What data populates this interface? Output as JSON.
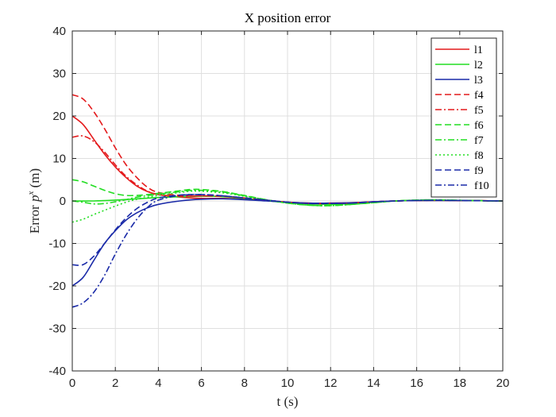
{
  "chart_data": {
    "type": "line",
    "title": "X position error",
    "xlabel": "t (s)",
    "ylabel_prefix": "Error",
    "ylabel_var": "p",
    "ylabel_sup": "x",
    "ylabel_unit": "(m)",
    "xlim": [
      0,
      20
    ],
    "ylim": [
      -40,
      40
    ],
    "xticks": [
      "0",
      "2",
      "4",
      "6",
      "8",
      "10",
      "12",
      "14",
      "16",
      "18",
      "20"
    ],
    "yticks": [
      "-40",
      "-30",
      "-20",
      "-10",
      "0",
      "10",
      "20",
      "30",
      "40"
    ],
    "grid": true,
    "legend_position": "top-right",
    "series": [
      {
        "name": "l1",
        "color": "#e41a1c",
        "style": "solid",
        "points": [
          [
            0,
            20
          ],
          [
            0.5,
            18
          ],
          [
            1,
            14.5
          ],
          [
            1.5,
            11
          ],
          [
            2,
            8
          ],
          [
            2.5,
            5.5
          ],
          [
            3,
            3.5
          ],
          [
            3.5,
            2.2
          ],
          [
            4,
            1.5
          ],
          [
            5,
            0.9
          ],
          [
            6,
            0.6
          ],
          [
            7,
            0.6
          ],
          [
            8,
            0.4
          ],
          [
            9,
            0.1
          ],
          [
            10,
            -0.3
          ],
          [
            11,
            -0.5
          ],
          [
            12,
            -0.5
          ],
          [
            13,
            -0.4
          ],
          [
            14,
            -0.2
          ],
          [
            15,
            0
          ],
          [
            16,
            0.1
          ],
          [
            17,
            0.1
          ],
          [
            18,
            0.1
          ],
          [
            19,
            0.05
          ],
          [
            20,
            0
          ]
        ]
      },
      {
        "name": "l2",
        "color": "#22dd22",
        "style": "solid",
        "points": [
          [
            0,
            0
          ],
          [
            1,
            0
          ],
          [
            2,
            0.2
          ],
          [
            3,
            0.5
          ],
          [
            4,
            0.8
          ],
          [
            5,
            1
          ],
          [
            6,
            1.1
          ],
          [
            7,
            1
          ],
          [
            8,
            0.6
          ],
          [
            9,
            0.1
          ],
          [
            10,
            -0.4
          ],
          [
            11,
            -0.7
          ],
          [
            12,
            -0.8
          ],
          [
            13,
            -0.6
          ],
          [
            14,
            -0.3
          ],
          [
            15,
            0
          ],
          [
            16,
            0.1
          ],
          [
            17,
            0.15
          ],
          [
            18,
            0.1
          ],
          [
            19,
            0.05
          ],
          [
            20,
            0
          ]
        ]
      },
      {
        "name": "l3",
        "color": "#1a2aa8",
        "style": "solid",
        "points": [
          [
            0,
            -20
          ],
          [
            0.5,
            -18
          ],
          [
            1,
            -14
          ],
          [
            1.5,
            -10
          ],
          [
            2,
            -7
          ],
          [
            2.5,
            -4.5
          ],
          [
            3,
            -2.8
          ],
          [
            3.5,
            -1.6
          ],
          [
            4,
            -0.8
          ],
          [
            5,
            0
          ],
          [
            6,
            0.4
          ],
          [
            7,
            0.5
          ],
          [
            8,
            0.3
          ],
          [
            9,
            0
          ],
          [
            10,
            -0.3
          ],
          [
            11,
            -0.5
          ],
          [
            12,
            -0.5
          ],
          [
            13,
            -0.4
          ],
          [
            14,
            -0.2
          ],
          [
            15,
            0
          ],
          [
            16,
            0.1
          ],
          [
            17,
            0.1
          ],
          [
            18,
            0.1
          ],
          [
            19,
            0.05
          ],
          [
            20,
            0
          ]
        ]
      },
      {
        "name": "f4",
        "color": "#e41a1c",
        "style": "dash",
        "points": [
          [
            0,
            25
          ],
          [
            0.5,
            24
          ],
          [
            1,
            21
          ],
          [
            1.5,
            17
          ],
          [
            2,
            12.5
          ],
          [
            2.5,
            8.5
          ],
          [
            3,
            5.5
          ],
          [
            3.5,
            3.2
          ],
          [
            4,
            2
          ],
          [
            5,
            1.3
          ],
          [
            6,
            1.2
          ],
          [
            7,
            1.1
          ],
          [
            8,
            0.7
          ],
          [
            9,
            0.2
          ],
          [
            10,
            -0.3
          ],
          [
            11,
            -0.6
          ],
          [
            12,
            -0.6
          ],
          [
            13,
            -0.5
          ],
          [
            14,
            -0.2
          ],
          [
            15,
            0
          ],
          [
            16,
            0.1
          ],
          [
            17,
            0.15
          ],
          [
            18,
            0.1
          ],
          [
            19,
            0.05
          ],
          [
            20,
            0
          ]
        ]
      },
      {
        "name": "f5",
        "color": "#e41a1c",
        "style": "dashdot",
        "points": [
          [
            0,
            15
          ],
          [
            0.5,
            15.3
          ],
          [
            1,
            14
          ],
          [
            1.5,
            11.5
          ],
          [
            2,
            8.5
          ],
          [
            2.5,
            5.8
          ],
          [
            3,
            3.8
          ],
          [
            3.5,
            2.3
          ],
          [
            4,
            1.5
          ],
          [
            5,
            1.1
          ],
          [
            6,
            1.2
          ],
          [
            7,
            1.1
          ],
          [
            8,
            0.7
          ],
          [
            9,
            0.2
          ],
          [
            10,
            -0.3
          ],
          [
            11,
            -0.6
          ],
          [
            12,
            -0.6
          ],
          [
            13,
            -0.5
          ],
          [
            14,
            -0.2
          ],
          [
            15,
            0
          ],
          [
            16,
            0.1
          ],
          [
            17,
            0.15
          ],
          [
            18,
            0.1
          ],
          [
            19,
            0.05
          ],
          [
            20,
            0
          ]
        ]
      },
      {
        "name": "f6",
        "color": "#22dd22",
        "style": "dash",
        "points": [
          [
            0,
            5
          ],
          [
            0.5,
            4.5
          ],
          [
            1,
            3.5
          ],
          [
            1.5,
            2.5
          ],
          [
            2,
            1.7
          ],
          [
            2.5,
            1.3
          ],
          [
            3,
            1.3
          ],
          [
            3.5,
            1.5
          ],
          [
            4,
            1.8
          ],
          [
            5,
            2.4
          ],
          [
            5.5,
            2.7
          ],
          [
            6,
            2.7
          ],
          [
            7,
            2.2
          ],
          [
            8,
            1.3
          ],
          [
            9,
            0.3
          ],
          [
            10,
            -0.5
          ],
          [
            11,
            -1
          ],
          [
            12,
            -1.1
          ],
          [
            13,
            -0.8
          ],
          [
            14,
            -0.4
          ],
          [
            15,
            0
          ],
          [
            16,
            0.2
          ],
          [
            17,
            0.25
          ],
          [
            18,
            0.15
          ],
          [
            19,
            0.05
          ],
          [
            20,
            0
          ]
        ]
      },
      {
        "name": "f7",
        "color": "#22dd22",
        "style": "dashdot",
        "points": [
          [
            0,
            0
          ],
          [
            0.5,
            -0.3
          ],
          [
            1,
            -0.7
          ],
          [
            1.5,
            -0.6
          ],
          [
            2,
            -0.2
          ],
          [
            2.5,
            0.3
          ],
          [
            3,
            0.9
          ],
          [
            4,
            1.6
          ],
          [
            5,
            2.2
          ],
          [
            5.5,
            2.5
          ],
          [
            6,
            2.5
          ],
          [
            7,
            2.1
          ],
          [
            8,
            1.2
          ],
          [
            9,
            0.3
          ],
          [
            10,
            -0.5
          ],
          [
            11,
            -1
          ],
          [
            12,
            -1.1
          ],
          [
            13,
            -0.8
          ],
          [
            14,
            -0.4
          ],
          [
            15,
            0
          ],
          [
            16,
            0.2
          ],
          [
            17,
            0.25
          ],
          [
            18,
            0.15
          ],
          [
            19,
            0.05
          ],
          [
            20,
            0
          ]
        ]
      },
      {
        "name": "f8",
        "color": "#22dd22",
        "style": "dot",
        "points": [
          [
            0,
            -5
          ],
          [
            0.5,
            -4.3
          ],
          [
            1,
            -3.2
          ],
          [
            1.5,
            -2.2
          ],
          [
            2,
            -1.2
          ],
          [
            2.5,
            -0.3
          ],
          [
            3,
            0.4
          ],
          [
            4,
            1.3
          ],
          [
            5,
            2
          ],
          [
            5.5,
            2.3
          ],
          [
            6,
            2.3
          ],
          [
            7,
            1.9
          ],
          [
            8,
            1.1
          ],
          [
            9,
            0.2
          ],
          [
            10,
            -0.5
          ],
          [
            11,
            -1
          ],
          [
            12,
            -1.1
          ],
          [
            13,
            -0.8
          ],
          [
            14,
            -0.4
          ],
          [
            15,
            0
          ],
          [
            16,
            0.2
          ],
          [
            17,
            0.25
          ],
          [
            18,
            0.15
          ],
          [
            19,
            0.05
          ],
          [
            20,
            0
          ]
        ]
      },
      {
        "name": "f9",
        "color": "#1a2aa8",
        "style": "dash",
        "points": [
          [
            0,
            -15
          ],
          [
            0.5,
            -15
          ],
          [
            1,
            -13
          ],
          [
            1.5,
            -10
          ],
          [
            2,
            -6.8
          ],
          [
            2.5,
            -4
          ],
          [
            3,
            -1.8
          ],
          [
            3.5,
            -0.3
          ],
          [
            4,
            0.7
          ],
          [
            5,
            1.4
          ],
          [
            6,
            1.5
          ],
          [
            7,
            1.2
          ],
          [
            8,
            0.7
          ],
          [
            9,
            0.2
          ],
          [
            10,
            -0.3
          ],
          [
            11,
            -0.6
          ],
          [
            12,
            -0.6
          ],
          [
            13,
            -0.5
          ],
          [
            14,
            -0.2
          ],
          [
            15,
            0
          ],
          [
            16,
            0.1
          ],
          [
            17,
            0.15
          ],
          [
            18,
            0.1
          ],
          [
            19,
            0.05
          ],
          [
            20,
            0
          ]
        ]
      },
      {
        "name": "f10",
        "color": "#1a2aa8",
        "style": "dashdot",
        "points": [
          [
            0,
            -25
          ],
          [
            0.5,
            -24
          ],
          [
            1,
            -21.5
          ],
          [
            1.5,
            -17.5
          ],
          [
            2,
            -12.5
          ],
          [
            2.5,
            -8
          ],
          [
            3,
            -4.3
          ],
          [
            3.5,
            -1.5
          ],
          [
            4,
            0.2
          ],
          [
            5,
            1.3
          ],
          [
            6,
            1.5
          ],
          [
            7,
            1.2
          ],
          [
            8,
            0.7
          ],
          [
            9,
            0.2
          ],
          [
            10,
            -0.3
          ],
          [
            11,
            -0.6
          ],
          [
            12,
            -0.6
          ],
          [
            13,
            -0.5
          ],
          [
            14,
            -0.2
          ],
          [
            15,
            0
          ],
          [
            16,
            0.1
          ],
          [
            17,
            0.15
          ],
          [
            18,
            0.1
          ],
          [
            19,
            0.05
          ],
          [
            20,
            0
          ]
        ]
      }
    ]
  }
}
